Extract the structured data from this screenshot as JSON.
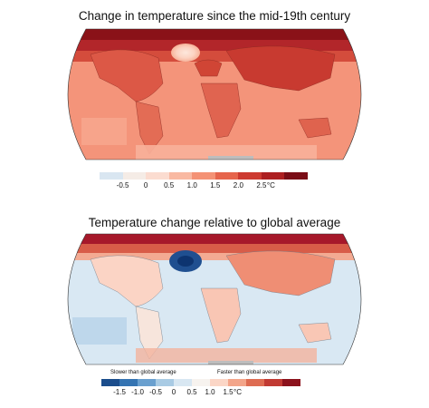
{
  "panels": [
    {
      "title": "Change in temperature since the mid-19th century",
      "colorbar": {
        "ticks": [
          "-0.5",
          "0",
          "0.5",
          "1.0",
          "1.5",
          "2.0",
          "2.5"
        ],
        "unit": "°C",
        "colors": [
          "#d9e6f1",
          "#f5ece6",
          "#fbdcd0",
          "#f9b9a2",
          "#f49275",
          "#e6654c",
          "#cd3a30",
          "#ad1f21",
          "#7a0d16"
        ]
      }
    },
    {
      "title": "Temperature change relative to global average",
      "colorbar": {
        "ticks": [
          "-1.5",
          "-1.0",
          "-0.5",
          "0",
          "0.5",
          "1.0",
          "1.5"
        ],
        "unit": "°C",
        "colors": [
          "#1b4d8c",
          "#3574b2",
          "#6aa0cf",
          "#a9cbe4",
          "#d8e7f2",
          "#f7f3ef",
          "#fbd6c6",
          "#f3a58a",
          "#de6c52",
          "#c13a33",
          "#8c121d"
        ],
        "left_caption": "Slower than global average",
        "right_caption": "Faster than global average"
      }
    }
  ]
}
